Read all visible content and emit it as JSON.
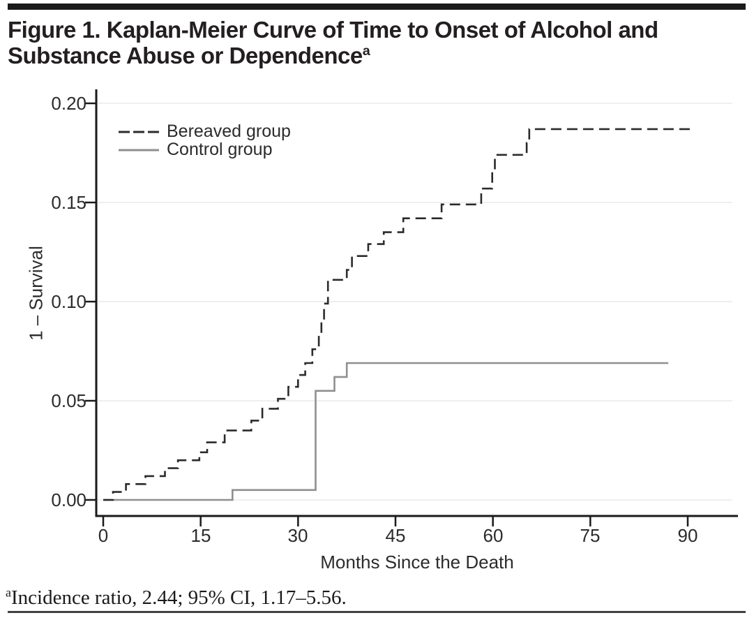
{
  "page": {
    "title_line1": "Figure 1. Kaplan-Meier Curve of Time to Onset of Alcohol and",
    "title_line2": "Substance Abuse or Dependence",
    "title_superscript": "a",
    "footnote_marker": "a",
    "footnote_text": "Incidence ratio, 2.44; 95% CI, 1.17–5.56."
  },
  "chart_data": {
    "type": "line",
    "subtype": "kaplan-meier-step",
    "title": "Figure 1. Kaplan-Meier Curve of Time to Onset of Alcohol and Substance Abuse or Dependence",
    "xlabel": "Months Since the Death",
    "ylabel": "1 – Survival",
    "xlim": [
      -1,
      98
    ],
    "ylim": [
      0,
      0.207
    ],
    "grid": "horizontal-faint",
    "legend_position": "upper-left-inside",
    "x_ticks": [
      0,
      15,
      30,
      45,
      60,
      75,
      90
    ],
    "x_tick_labels": [
      "0",
      "15",
      "30",
      "45",
      "60",
      "75",
      "90"
    ],
    "y_ticks": [
      0.0,
      0.05,
      0.1,
      0.15,
      0.2
    ],
    "y_tick_labels": [
      "0.00",
      "0.05",
      "0.10",
      "0.15",
      "0.20"
    ],
    "colors": {
      "bereaved": "#2b2b2b",
      "control": "#8f8f8f",
      "gridline": "#efefef",
      "axis": "#1a1a1a"
    },
    "series": [
      {
        "name": "Bereaved group",
        "line_style": "dashed",
        "color": "#2b2b2b",
        "dash": "15 8",
        "start": [
          0,
          0.0
        ],
        "steps": [
          [
            1.5,
            0.004
          ],
          [
            3.5,
            0.008
          ],
          [
            6.5,
            0.012
          ],
          [
            9.5,
            0.016
          ],
          [
            11.5,
            0.02
          ],
          [
            14.8,
            0.024
          ],
          [
            16.0,
            0.029
          ],
          [
            18.7,
            0.035
          ],
          [
            22.8,
            0.04
          ],
          [
            24.5,
            0.046
          ],
          [
            26.9,
            0.051
          ],
          [
            28.5,
            0.057
          ],
          [
            30.0,
            0.063
          ],
          [
            31.1,
            0.069
          ],
          [
            32.2,
            0.076
          ],
          [
            33.2,
            0.083
          ],
          [
            33.6,
            0.091
          ],
          [
            34.0,
            0.099
          ],
          [
            34.6,
            0.111
          ],
          [
            37.5,
            0.116
          ],
          [
            38.3,
            0.123
          ],
          [
            40.8,
            0.129
          ],
          [
            43.2,
            0.135
          ],
          [
            46.2,
            0.142
          ],
          [
            52.1,
            0.149
          ],
          [
            58.2,
            0.157
          ],
          [
            59.9,
            0.166
          ],
          [
            60.3,
            0.174
          ],
          [
            65.2,
            0.18
          ],
          [
            65.6,
            0.187
          ]
        ],
        "end_month": 91,
        "final_value": 0.187
      },
      {
        "name": "Control group",
        "line_style": "solid",
        "color": "#8f8f8f",
        "dash": null,
        "start": [
          0,
          0.0
        ],
        "steps": [
          [
            19.9,
            0.005
          ],
          [
            32.7,
            0.055
          ],
          [
            35.6,
            0.062
          ],
          [
            37.5,
            0.069
          ]
        ],
        "end_month": 87,
        "final_value": 0.069
      }
    ]
  }
}
